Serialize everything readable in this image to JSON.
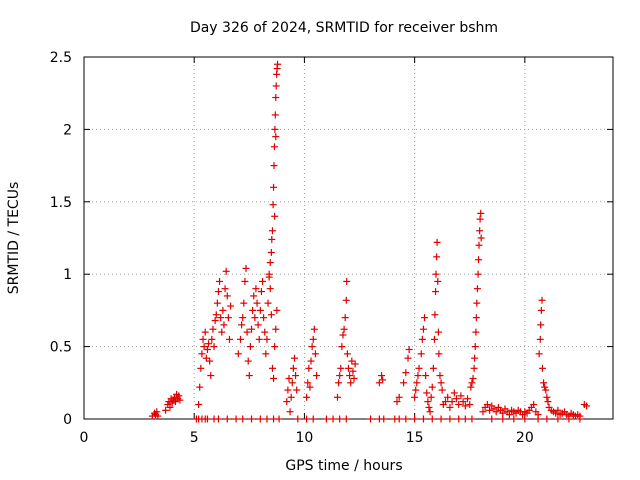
{
  "chart_data": {
    "type": "scatter",
    "title": "Day 326 of 2024, SRMTID for receiver bshm",
    "xlabel": "GPS time / hours",
    "ylabel": "SRMTID / TECUs",
    "xlim": [
      0,
      24
    ],
    "ylim": [
      0,
      2.5
    ],
    "x_ticks": [
      0,
      5,
      10,
      15,
      20
    ],
    "x_tick_labels": [
      "0",
      "5",
      "10",
      "15",
      "20"
    ],
    "y_ticks": [
      0,
      0.5,
      1,
      1.5,
      2,
      2.5
    ],
    "y_tick_labels": [
      "0",
      "0.5",
      "1",
      "1.5",
      "2",
      "2.5"
    ],
    "grid": true,
    "marker": "+",
    "color": "#e00000",
    "series": [
      {
        "name": "SRMTID",
        "points": [
          [
            3.1,
            0.02
          ],
          [
            3.2,
            0.04
          ],
          [
            3.25,
            0.03
          ],
          [
            3.3,
            0.05
          ],
          [
            3.35,
            0.02
          ],
          [
            3.7,
            0.06
          ],
          [
            3.8,
            0.1
          ],
          [
            3.85,
            0.12
          ],
          [
            3.9,
            0.08
          ],
          [
            3.95,
            0.14
          ],
          [
            4.0,
            0.11
          ],
          [
            4.05,
            0.13
          ],
          [
            4.1,
            0.15
          ],
          [
            4.15,
            0.12
          ],
          [
            4.2,
            0.17
          ],
          [
            4.25,
            0.14
          ],
          [
            4.3,
            0.16
          ],
          [
            4.35,
            0.13
          ],
          [
            5.1,
            0.0
          ],
          [
            5.2,
            0.0
          ],
          [
            5.35,
            0.0
          ],
          [
            5.5,
            0.0
          ],
          [
            5.2,
            0.1
          ],
          [
            5.25,
            0.22
          ],
          [
            5.3,
            0.35
          ],
          [
            5.35,
            0.45
          ],
          [
            5.4,
            0.55
          ],
          [
            5.45,
            0.5
          ],
          [
            5.5,
            0.6
          ],
          [
            5.55,
            0.42
          ],
          [
            5.6,
            0.48
          ],
          [
            5.65,
            0.52
          ],
          [
            5.7,
            0.4
          ],
          [
            5.75,
            0.3
          ],
          [
            5.8,
            0.55
          ],
          [
            5.85,
            0.62
          ],
          [
            5.9,
            0.5
          ],
          [
            5.95,
            0.68
          ],
          [
            6.0,
            0.72
          ],
          [
            6.05,
            0.8
          ],
          [
            6.1,
            0.88
          ],
          [
            6.15,
            0.95
          ],
          [
            6.2,
            0.7
          ],
          [
            6.25,
            0.6
          ],
          [
            6.3,
            0.75
          ],
          [
            6.35,
            0.65
          ],
          [
            6.4,
            0.9
          ],
          [
            6.45,
            1.02
          ],
          [
            6.5,
            0.85
          ],
          [
            6.55,
            0.7
          ],
          [
            6.6,
            0.55
          ],
          [
            6.65,
            0.78
          ],
          [
            5.6,
            0.0
          ],
          [
            5.9,
            0.0
          ],
          [
            6.1,
            0.0
          ],
          [
            6.5,
            0.0
          ],
          [
            6.9,
            0.0
          ],
          [
            7.2,
            0.0
          ],
          [
            7.0,
            0.45
          ],
          [
            7.1,
            0.55
          ],
          [
            7.15,
            0.65
          ],
          [
            7.2,
            0.7
          ],
          [
            7.25,
            0.8
          ],
          [
            7.3,
            0.95
          ],
          [
            7.35,
            1.04
          ],
          [
            7.4,
            0.6
          ],
          [
            7.45,
            0.4
          ],
          [
            7.5,
            0.3
          ],
          [
            7.55,
            0.5
          ],
          [
            7.6,
            0.62
          ],
          [
            7.65,
            0.75
          ],
          [
            7.7,
            0.85
          ],
          [
            7.75,
            0.7
          ],
          [
            7.8,
            0.9
          ],
          [
            7.85,
            0.8
          ],
          [
            7.9,
            0.65
          ],
          [
            7.95,
            0.55
          ],
          [
            8.0,
            0.75
          ],
          [
            8.05,
            0.88
          ],
          [
            8.1,
            0.95
          ],
          [
            8.15,
            0.7
          ],
          [
            8.2,
            0.6
          ],
          [
            8.25,
            0.45
          ],
          [
            8.3,
            0.55
          ],
          [
            8.35,
            0.8
          ],
          [
            8.4,
            0.98
          ],
          [
            8.45,
            0.9
          ],
          [
            8.5,
            0.72
          ],
          [
            8.55,
            0.35
          ],
          [
            8.6,
            0.28
          ],
          [
            8.65,
            0.5
          ],
          [
            8.7,
            0.62
          ],
          [
            8.75,
            0.75
          ],
          [
            8.4,
            1.0
          ],
          [
            8.45,
            1.08
          ],
          [
            8.5,
            1.15
          ],
          [
            8.52,
            1.24
          ],
          [
            8.55,
            1.3
          ],
          [
            8.58,
            1.48
          ],
          [
            8.6,
            1.6
          ],
          [
            8.62,
            1.75
          ],
          [
            8.64,
            1.88
          ],
          [
            8.66,
            2.0
          ],
          [
            8.68,
            2.1
          ],
          [
            8.7,
            2.22
          ],
          [
            8.72,
            2.3
          ],
          [
            8.74,
            2.38
          ],
          [
            8.76,
            2.42
          ],
          [
            8.78,
            2.45
          ],
          [
            8.7,
            1.95
          ],
          [
            8.65,
            1.4
          ],
          [
            7.6,
            0.0
          ],
          [
            8.0,
            0.0
          ],
          [
            8.3,
            0.0
          ],
          [
            8.6,
            0.0
          ],
          [
            8.85,
            0.0
          ],
          [
            9.2,
            0.12
          ],
          [
            9.25,
            0.2
          ],
          [
            9.3,
            0.28
          ],
          [
            9.35,
            0.05
          ],
          [
            9.4,
            0.15
          ],
          [
            9.45,
            0.25
          ],
          [
            9.5,
            0.35
          ],
          [
            9.55,
            0.42
          ],
          [
            9.6,
            0.3
          ],
          [
            9.65,
            0.2
          ],
          [
            9.7,
            0.0
          ],
          [
            10.1,
            0.0
          ],
          [
            10.4,
            0.0
          ],
          [
            10.1,
            0.15
          ],
          [
            10.15,
            0.25
          ],
          [
            10.2,
            0.35
          ],
          [
            10.25,
            0.22
          ],
          [
            10.3,
            0.4
          ],
          [
            10.35,
            0.5
          ],
          [
            10.4,
            0.55
          ],
          [
            10.45,
            0.62
          ],
          [
            10.5,
            0.45
          ],
          [
            10.55,
            0.3
          ],
          [
            11.0,
            0.0
          ],
          [
            11.3,
            0.0
          ],
          [
            11.6,
            0.0
          ],
          [
            11.9,
            0.0
          ],
          [
            11.5,
            0.15
          ],
          [
            11.55,
            0.25
          ],
          [
            11.6,
            0.3
          ],
          [
            11.65,
            0.35
          ],
          [
            11.7,
            0.5
          ],
          [
            11.75,
            0.58
          ],
          [
            11.8,
            0.62
          ],
          [
            11.85,
            0.7
          ],
          [
            11.9,
            0.82
          ],
          [
            11.92,
            0.95
          ],
          [
            11.95,
            0.45
          ],
          [
            12.0,
            0.35
          ],
          [
            12.05,
            0.3
          ],
          [
            12.1,
            0.25
          ],
          [
            12.15,
            0.4
          ],
          [
            12.2,
            0.33
          ],
          [
            12.25,
            0.28
          ],
          [
            12.3,
            0.38
          ],
          [
            13.0,
            0.0
          ],
          [
            13.4,
            0.0
          ],
          [
            13.6,
            0.0
          ],
          [
            14.1,
            0.0
          ],
          [
            14.3,
            0.0
          ],
          [
            14.6,
            0.0
          ],
          [
            13.4,
            0.25
          ],
          [
            13.5,
            0.3
          ],
          [
            13.55,
            0.27
          ],
          [
            14.2,
            0.12
          ],
          [
            14.3,
            0.15
          ],
          [
            14.5,
            0.25
          ],
          [
            14.6,
            0.32
          ],
          [
            14.7,
            0.42
          ],
          [
            14.75,
            0.48
          ],
          [
            15.0,
            0.15
          ],
          [
            15.05,
            0.2
          ],
          [
            15.1,
            0.25
          ],
          [
            15.15,
            0.3
          ],
          [
            15.2,
            0.35
          ],
          [
            15.3,
            0.45
          ],
          [
            15.35,
            0.55
          ],
          [
            15.4,
            0.62
          ],
          [
            15.45,
            0.7
          ],
          [
            15.5,
            0.3
          ],
          [
            15.55,
            0.18
          ],
          [
            15.6,
            0.12
          ],
          [
            15.65,
            0.08
          ],
          [
            15.7,
            0.05
          ],
          [
            15.75,
            0.15
          ],
          [
            15.8,
            0.22
          ],
          [
            15.85,
            0.35
          ],
          [
            15.9,
            0.55
          ],
          [
            15.92,
            0.72
          ],
          [
            15.95,
            0.88
          ],
          [
            15.97,
            1.0
          ],
          [
            16.0,
            1.12
          ],
          [
            16.02,
            1.22
          ],
          [
            16.05,
            0.95
          ],
          [
            16.08,
            0.6
          ],
          [
            16.1,
            0.45
          ],
          [
            16.15,
            0.3
          ],
          [
            16.2,
            0.25
          ],
          [
            16.25,
            0.2
          ],
          [
            15.0,
            0.0
          ],
          [
            15.4,
            0.0
          ],
          [
            15.8,
            0.0
          ],
          [
            16.2,
            0.0
          ],
          [
            16.6,
            0.0
          ],
          [
            16.3,
            0.1
          ],
          [
            16.4,
            0.12
          ],
          [
            16.5,
            0.15
          ],
          [
            16.6,
            0.08
          ],
          [
            16.7,
            0.12
          ],
          [
            16.8,
            0.18
          ],
          [
            16.9,
            0.14
          ],
          [
            17.0,
            0.1
          ],
          [
            17.1,
            0.16
          ],
          [
            17.2,
            0.12
          ],
          [
            17.3,
            0.09
          ],
          [
            17.4,
            0.14
          ],
          [
            17.5,
            0.1
          ],
          [
            17.55,
            0.22
          ],
          [
            17.6,
            0.25
          ],
          [
            17.65,
            0.28
          ],
          [
            17.7,
            0.35
          ],
          [
            17.72,
            0.42
          ],
          [
            17.75,
            0.5
          ],
          [
            17.78,
            0.6
          ],
          [
            17.8,
            0.7
          ],
          [
            17.82,
            0.8
          ],
          [
            17.85,
            0.9
          ],
          [
            17.88,
            1.0
          ],
          [
            17.9,
            1.1
          ],
          [
            17.92,
            1.2
          ],
          [
            17.95,
            1.3
          ],
          [
            17.97,
            1.38
          ],
          [
            18.0,
            1.42
          ],
          [
            18.02,
            1.25
          ],
          [
            17.0,
            0.0
          ],
          [
            17.3,
            0.0
          ],
          [
            17.6,
            0.0
          ],
          [
            18.1,
            0.05
          ],
          [
            18.2,
            0.08
          ],
          [
            18.3,
            0.1
          ],
          [
            18.4,
            0.06
          ],
          [
            18.5,
            0.09
          ],
          [
            18.6,
            0.07
          ],
          [
            18.7,
            0.05
          ],
          [
            18.8,
            0.08
          ],
          [
            18.9,
            0.06
          ],
          [
            19.0,
            0.04
          ],
          [
            19.1,
            0.07
          ],
          [
            19.2,
            0.05
          ],
          [
            19.3,
            0.03
          ],
          [
            19.4,
            0.06
          ],
          [
            19.5,
            0.05
          ],
          [
            19.6,
            0.04
          ],
          [
            19.7,
            0.06
          ],
          [
            19.8,
            0.05
          ],
          [
            19.9,
            0.03
          ],
          [
            20.0,
            0.05
          ],
          [
            20.1,
            0.04
          ],
          [
            20.2,
            0.06
          ],
          [
            20.3,
            0.08
          ],
          [
            20.4,
            0.1
          ],
          [
            20.5,
            0.05
          ],
          [
            20.6,
            0.03
          ],
          [
            18.5,
            0.0
          ],
          [
            19.0,
            0.0
          ],
          [
            19.5,
            0.0
          ],
          [
            20.0,
            0.0
          ],
          [
            20.6,
            0.0
          ],
          [
            20.65,
            0.45
          ],
          [
            20.7,
            0.55
          ],
          [
            20.72,
            0.65
          ],
          [
            20.75,
            0.75
          ],
          [
            20.78,
            0.82
          ],
          [
            20.8,
            0.35
          ],
          [
            20.85,
            0.25
          ],
          [
            20.9,
            0.22
          ],
          [
            20.95,
            0.2
          ],
          [
            21.0,
            0.15
          ],
          [
            21.05,
            0.12
          ],
          [
            21.1,
            0.08
          ],
          [
            21.2,
            0.06
          ],
          [
            21.3,
            0.05
          ],
          [
            21.4,
            0.04
          ],
          [
            21.5,
            0.06
          ],
          [
            21.6,
            0.03
          ],
          [
            21.7,
            0.04
          ],
          [
            21.8,
            0.05
          ],
          [
            21.9,
            0.03
          ],
          [
            22.0,
            0.02
          ],
          [
            22.1,
            0.04
          ],
          [
            22.2,
            0.03
          ],
          [
            22.3,
            0.02
          ],
          [
            22.4,
            0.03
          ],
          [
            22.5,
            0.02
          ],
          [
            21.0,
            0.0
          ],
          [
            21.5,
            0.0
          ],
          [
            22.0,
            0.0
          ],
          [
            22.5,
            0.0
          ],
          [
            22.7,
            0.1
          ],
          [
            22.8,
            0.09
          ]
        ]
      }
    ]
  }
}
